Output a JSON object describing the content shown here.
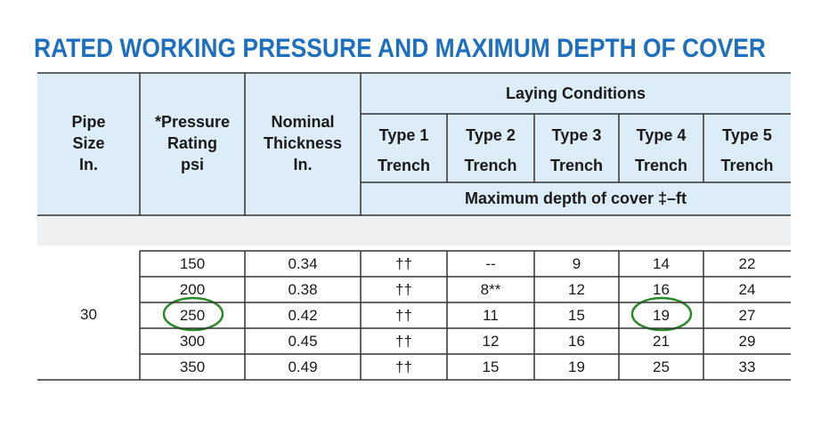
{
  "title": "RATED WORKING PRESSURE AND MAXIMUM DEPTH OF COVER",
  "header": {
    "pipe_size": [
      "Pipe",
      "Size",
      "In."
    ],
    "pressure_rating": [
      "*Pressure",
      "Rating",
      "psi"
    ],
    "nominal_thickness": [
      "Nominal",
      "Thickness",
      "In."
    ],
    "laying_conditions": "Laying Conditions",
    "types": [
      [
        "Type 1",
        "Trench"
      ],
      [
        "Type 2",
        "Trench"
      ],
      [
        "Type 3",
        "Trench"
      ],
      [
        "Type 4",
        "Trench"
      ],
      [
        "Type 5",
        "Trench"
      ]
    ],
    "max_depth": "Maximum depth of cover ‡–ft"
  },
  "table": {
    "pipe_size": "30",
    "rows": [
      [
        "150",
        "0.34",
        "††",
        "--",
        "9",
        "14",
        "22"
      ],
      [
        "200",
        "0.38",
        "††",
        "8**",
        "12",
        "16",
        "24"
      ],
      [
        "250",
        "0.42",
        "††",
        "11",
        "15",
        "19",
        "27"
      ],
      [
        "300",
        "0.45",
        "††",
        "12",
        "16",
        "21",
        "29"
      ],
      [
        "350",
        "0.49",
        "††",
        "15",
        "19",
        "25",
        "33"
      ]
    ]
  }
}
